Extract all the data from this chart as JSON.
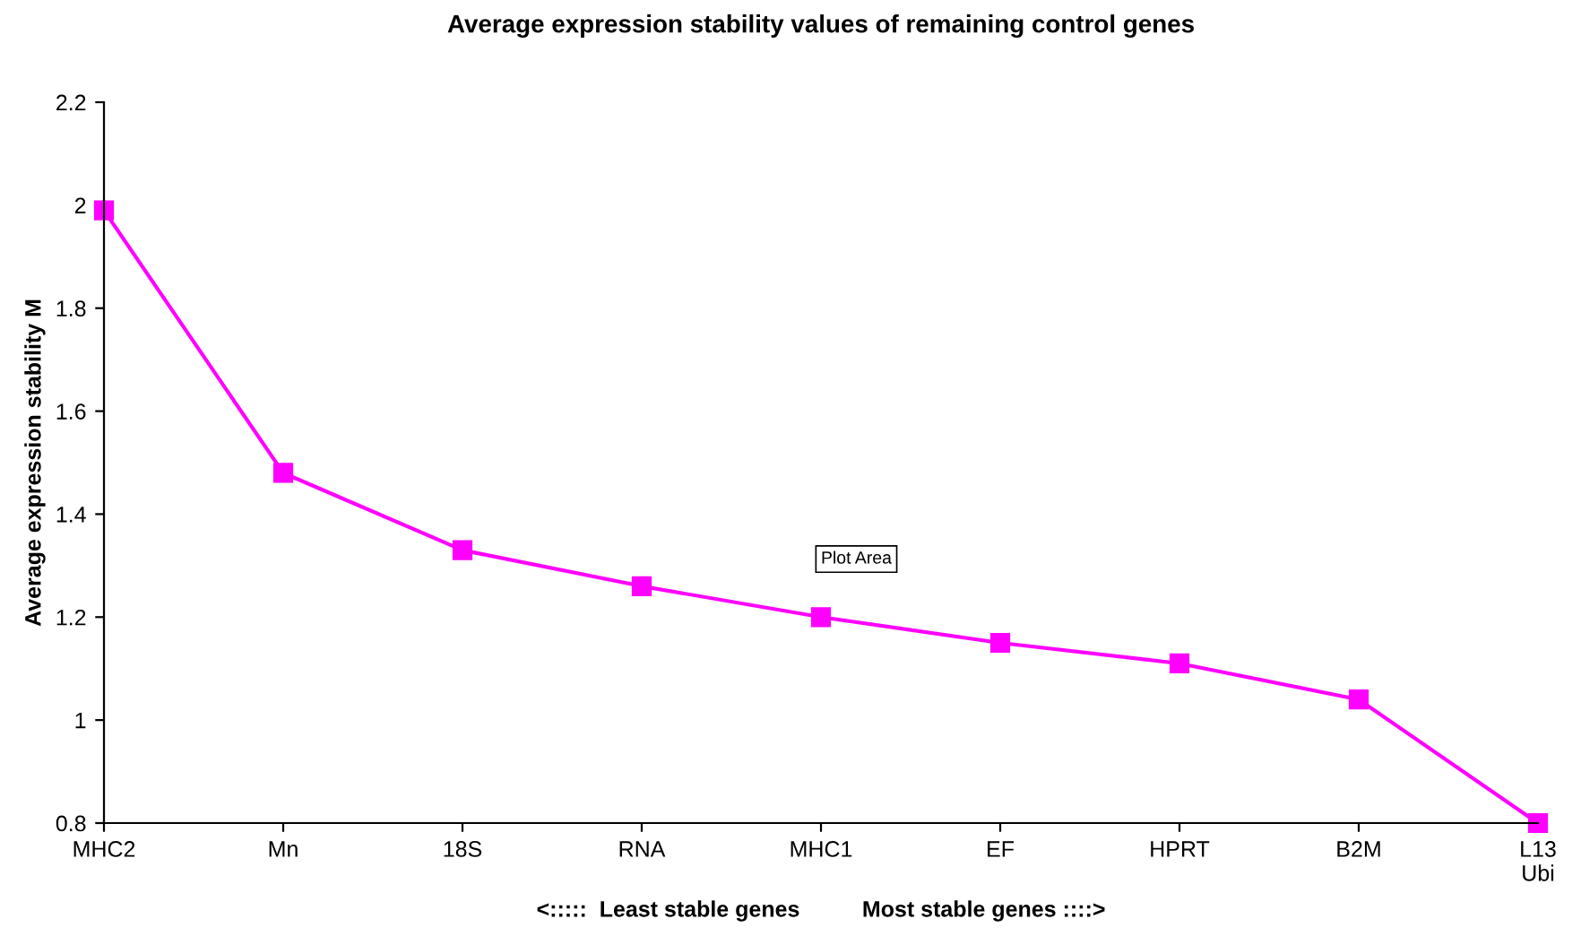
{
  "chart_data": {
    "type": "line",
    "title": "Average expression stability values of remaining control genes",
    "ylabel": "Average expression stability M",
    "xlabel": "<:::::  Least stable genes          Most stable genes ::::>",
    "categories": [
      "MHC2",
      "Mn",
      "18S",
      "RNA",
      "MHC1",
      "EF",
      "HPRT",
      "B2M",
      "L13\nUbi"
    ],
    "series": [
      {
        "color": "#ff00ff",
        "values": [
          1.99,
          1.48,
          1.33,
          1.26,
          1.2,
          1.15,
          1.11,
          1.04,
          0.8
        ]
      }
    ],
    "ylim": [
      0.8,
      2.2
    ],
    "yticks": [
      0.8,
      1,
      1.2,
      1.4,
      1.6,
      1.8,
      2,
      2.2
    ],
    "grid": false,
    "legend": false,
    "marker": "square",
    "line_style": "solid",
    "annotations": [
      "Plot Area"
    ]
  }
}
